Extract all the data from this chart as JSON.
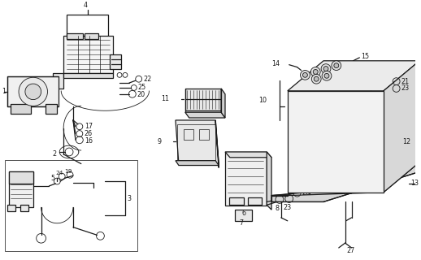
{
  "bg_color": "#ffffff",
  "line_color": "#1a1a1a",
  "fig_width": 5.18,
  "fig_height": 3.2,
  "dpi": 100,
  "label_fs": 5.8,
  "lw_main": 0.9,
  "lw_thin": 0.6
}
